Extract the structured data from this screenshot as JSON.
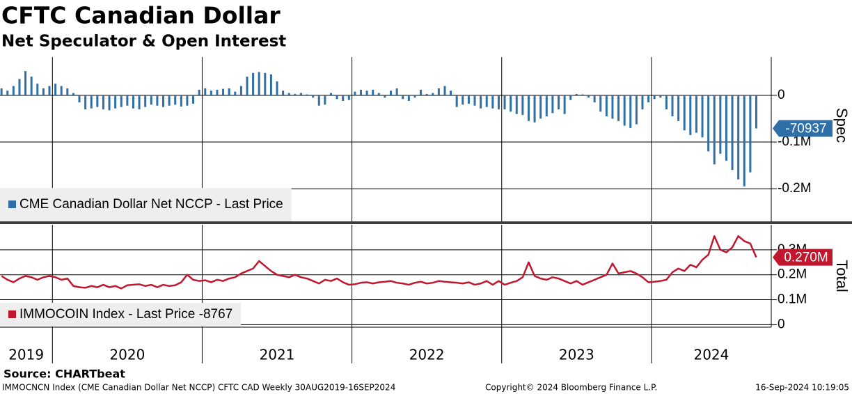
{
  "chart_data": [
    {
      "type": "bar",
      "title": "CFTC Canadian Dollar",
      "subtitle": "Net Speculator & Open Interest",
      "axis_label": "Spec",
      "legend": "lower left",
      "grid": true,
      "xlim": [
        2019.65,
        2024.8
      ],
      "xticks": [
        2020,
        2021,
        2022,
        2023,
        2024
      ],
      "ylim": [
        -270000,
        82000
      ],
      "yticks": [
        0,
        {
          "value": -100000,
          "label": "-0.1M"
        },
        {
          "value": -200000,
          "label": "-0.2M"
        }
      ],
      "x": [
        2019.66,
        2019.7,
        2019.74,
        2019.78,
        2019.82,
        2019.86,
        2019.9,
        2019.94,
        2019.98,
        2020.02,
        2020.06,
        2020.1,
        2020.14,
        2020.18,
        2020.22,
        2020.26,
        2020.3,
        2020.34,
        2020.38,
        2020.42,
        2020.46,
        2020.5,
        2020.54,
        2020.58,
        2020.62,
        2020.66,
        2020.7,
        2020.74,
        2020.78,
        2020.82,
        2020.86,
        2020.9,
        2020.94,
        2020.98,
        2021.02,
        2021.06,
        2021.1,
        2021.14,
        2021.18,
        2021.22,
        2021.26,
        2021.3,
        2021.34,
        2021.38,
        2021.42,
        2021.46,
        2021.5,
        2021.54,
        2021.58,
        2021.62,
        2021.66,
        2021.7,
        2021.74,
        2021.78,
        2021.82,
        2021.86,
        2021.9,
        2021.94,
        2021.98,
        2022.02,
        2022.06,
        2022.1,
        2022.14,
        2022.18,
        2022.22,
        2022.26,
        2022.3,
        2022.34,
        2022.38,
        2022.42,
        2022.46,
        2022.5,
        2022.54,
        2022.58,
        2022.62,
        2022.66,
        2022.7,
        2022.74,
        2022.78,
        2022.82,
        2022.86,
        2022.9,
        2022.94,
        2022.98,
        2023.02,
        2023.06,
        2023.1,
        2023.14,
        2023.18,
        2023.22,
        2023.26,
        2023.3,
        2023.34,
        2023.38,
        2023.42,
        2023.46,
        2023.5,
        2023.54,
        2023.58,
        2023.62,
        2023.66,
        2023.7,
        2023.74,
        2023.78,
        2023.82,
        2023.86,
        2023.9,
        2023.94,
        2023.98,
        2024.02,
        2024.06,
        2024.1,
        2024.14,
        2024.18,
        2024.22,
        2024.26,
        2024.3,
        2024.34,
        2024.38,
        2024.42,
        2024.46,
        2024.5,
        2024.54,
        2024.58,
        2024.62,
        2024.66,
        2024.7
      ],
      "series": [
        {
          "name": "CME Canadian Dollar Net NCCP - Last Price",
          "color": "#2f6fa8",
          "values": [
            15000,
            10000,
            20000,
            35000,
            52000,
            40000,
            25000,
            15000,
            20000,
            25000,
            20000,
            15000,
            5000,
            -15000,
            -30000,
            -28000,
            -25000,
            -30000,
            -32000,
            -28000,
            -25000,
            -22000,
            -28000,
            -30000,
            -25000,
            -20000,
            -22000,
            -25000,
            -22000,
            -20000,
            -24000,
            -22000,
            -18000,
            12000,
            15000,
            10000,
            12000,
            14000,
            15000,
            8000,
            20000,
            40000,
            48000,
            50000,
            48000,
            45000,
            30000,
            10000,
            5000,
            3000,
            5000,
            2000,
            -5000,
            -22000,
            -20000,
            5000,
            -8000,
            -12000,
            -10000,
            8000,
            12000,
            10000,
            12000,
            5000,
            -5000,
            10000,
            15000,
            -8000,
            -12000,
            -5000,
            12000,
            3000,
            5000,
            15000,
            20000,
            10000,
            -25000,
            -20000,
            -18000,
            -22000,
            -28000,
            -25000,
            -28000,
            -30000,
            -30000,
            -35000,
            -40000,
            -42000,
            -55000,
            -58000,
            -50000,
            -45000,
            -38000,
            -30000,
            -40000,
            -10000,
            3000,
            2000,
            -5000,
            -15000,
            -35000,
            -45000,
            -50000,
            -55000,
            -65000,
            -70000,
            -62000,
            -30000,
            -15000,
            -8000,
            -5000,
            -30000,
            -45000,
            -55000,
            -75000,
            -85000,
            -80000,
            -90000,
            -120000,
            -148000,
            -125000,
            -140000,
            -160000,
            -180000,
            -195000,
            -165000,
            -70937
          ]
        }
      ]
    },
    {
      "type": "line",
      "axis_label": "Total",
      "legend": "lower left",
      "grid": true,
      "xlim": [
        2019.65,
        2024.8
      ],
      "xticks": [
        {
          "value": 2019,
          "label": "2019"
        },
        {
          "value": 2020,
          "label": "2020"
        },
        {
          "value": 2021,
          "label": "2021"
        },
        {
          "value": 2022,
          "label": "2022"
        },
        {
          "value": 2023,
          "label": "2023"
        },
        {
          "value": 2024,
          "label": "2024"
        }
      ],
      "ylim": [
        -10000,
        400000
      ],
      "yticks": [
        0,
        {
          "value": 100000,
          "label": "0.1M"
        },
        {
          "value": 200000,
          "label": "0.2M"
        },
        {
          "value": 300000,
          "label": "0.3M"
        }
      ],
      "x": [
        2019.66,
        2019.7,
        2019.74,
        2019.78,
        2019.82,
        2019.86,
        2019.9,
        2019.94,
        2019.98,
        2020.02,
        2020.06,
        2020.1,
        2020.14,
        2020.18,
        2020.22,
        2020.26,
        2020.3,
        2020.34,
        2020.38,
        2020.42,
        2020.46,
        2020.5,
        2020.54,
        2020.58,
        2020.62,
        2020.66,
        2020.7,
        2020.74,
        2020.78,
        2020.82,
        2020.86,
        2020.9,
        2020.94,
        2020.98,
        2021.02,
        2021.06,
        2021.1,
        2021.14,
        2021.18,
        2021.22,
        2021.26,
        2021.3,
        2021.34,
        2021.38,
        2021.42,
        2021.46,
        2021.5,
        2021.54,
        2021.58,
        2021.62,
        2021.66,
        2021.7,
        2021.74,
        2021.78,
        2021.82,
        2021.86,
        2021.9,
        2021.94,
        2021.98,
        2022.02,
        2022.06,
        2022.1,
        2022.14,
        2022.18,
        2022.22,
        2022.26,
        2022.3,
        2022.34,
        2022.38,
        2022.42,
        2022.46,
        2022.5,
        2022.54,
        2022.58,
        2022.62,
        2022.66,
        2022.7,
        2022.74,
        2022.78,
        2022.82,
        2022.86,
        2022.9,
        2022.94,
        2022.98,
        2023.02,
        2023.06,
        2023.1,
        2023.14,
        2023.18,
        2023.22,
        2023.26,
        2023.3,
        2023.34,
        2023.38,
        2023.42,
        2023.46,
        2023.5,
        2023.54,
        2023.58,
        2023.62,
        2023.66,
        2023.7,
        2023.74,
        2023.78,
        2023.82,
        2023.86,
        2023.9,
        2023.94,
        2023.98,
        2024.02,
        2024.06,
        2024.1,
        2024.14,
        2024.18,
        2024.22,
        2024.26,
        2024.3,
        2024.34,
        2024.38,
        2024.42,
        2024.46,
        2024.5,
        2024.54,
        2024.58,
        2024.62,
        2024.66,
        2024.7
      ],
      "series": [
        {
          "name": "IMMOCOIN Index - Last Price -8767",
          "color": "#c0172f",
          "values": [
            195000,
            180000,
            170000,
            185000,
            195000,
            190000,
            180000,
            190000,
            195000,
            190000,
            180000,
            185000,
            155000,
            150000,
            148000,
            155000,
            150000,
            160000,
            150000,
            155000,
            145000,
            158000,
            160000,
            162000,
            155000,
            160000,
            150000,
            160000,
            155000,
            158000,
            170000,
            200000,
            180000,
            175000,
            178000,
            170000,
            180000,
            175000,
            185000,
            190000,
            205000,
            215000,
            225000,
            255000,
            235000,
            215000,
            200000,
            195000,
            190000,
            200000,
            190000,
            185000,
            175000,
            165000,
            180000,
            175000,
            185000,
            170000,
            160000,
            162000,
            168000,
            170000,
            165000,
            170000,
            172000,
            175000,
            168000,
            165000,
            160000,
            168000,
            172000,
            165000,
            168000,
            175000,
            172000,
            170000,
            168000,
            165000,
            170000,
            160000,
            165000,
            175000,
            160000,
            175000,
            160000,
            168000,
            175000,
            190000,
            250000,
            195000,
            185000,
            180000,
            190000,
            185000,
            175000,
            165000,
            175000,
            160000,
            170000,
            180000,
            190000,
            200000,
            245000,
            205000,
            210000,
            215000,
            205000,
            190000,
            170000,
            172000,
            175000,
            180000,
            210000,
            225000,
            215000,
            240000,
            230000,
            260000,
            280000,
            355000,
            300000,
            290000,
            310000,
            355000,
            335000,
            325000,
            270000
          ],
          "value_labels": {
            "126": "0.270M"
          }
        }
      ]
    }
  ],
  "footer": {
    "source": "Source: CHARTbeat",
    "description": "IMMOCNCN Index (CME Canadian Dollar Net NCCP) CFTC CAD  Weekly 30AUG2019-16SEP2024",
    "copyright": "Copyright© 2024 Bloomberg Finance L.P.",
    "timestamp": "16-Sep-2024 10:19:05"
  }
}
